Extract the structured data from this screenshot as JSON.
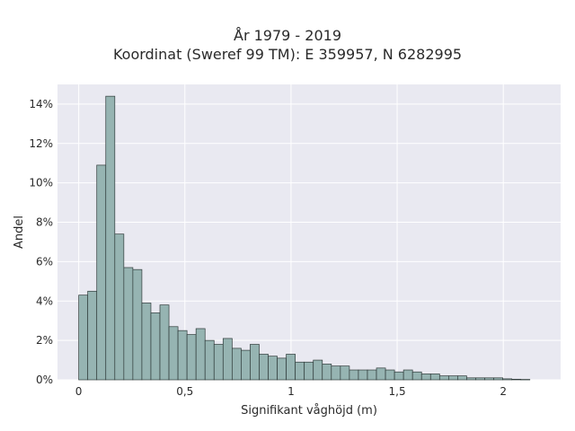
{
  "title_line1": "År 1979 - 2019",
  "title_line2": "Koordinat (Sweref 99 TM): E 359957, N 6282995",
  "chart_data": {
    "type": "bar",
    "xlabel": "Signifikant våghöjd (m)",
    "ylabel": "Andel",
    "xlim": [
      -0.1,
      2.27
    ],
    "ylim": [
      0,
      0.15
    ],
    "bin_width": 0.0425,
    "bin_start": 0.0,
    "x_ticks": [
      {
        "value": 0,
        "label": "0"
      },
      {
        "value": 0.5,
        "label": "0,5"
      },
      {
        "value": 1,
        "label": "1"
      },
      {
        "value": 1.5,
        "label": "1,5"
      },
      {
        "value": 2,
        "label": "2"
      }
    ],
    "y_ticks": [
      {
        "value": 0,
        "label": "0%"
      },
      {
        "value": 0.02,
        "label": "2%"
      },
      {
        "value": 0.04,
        "label": "4%"
      },
      {
        "value": 0.06,
        "label": "6%"
      },
      {
        "value": 0.08,
        "label": "8%"
      },
      {
        "value": 0.1,
        "label": "10%"
      },
      {
        "value": 0.12,
        "label": "12%"
      },
      {
        "value": 0.14,
        "label": "14%"
      }
    ],
    "values": [
      0.043,
      0.045,
      0.109,
      0.144,
      0.074,
      0.057,
      0.056,
      0.039,
      0.034,
      0.038,
      0.027,
      0.025,
      0.023,
      0.026,
      0.02,
      0.018,
      0.021,
      0.016,
      0.015,
      0.018,
      0.013,
      0.012,
      0.011,
      0.013,
      0.009,
      0.009,
      0.01,
      0.008,
      0.007,
      0.007,
      0.005,
      0.005,
      0.005,
      0.006,
      0.005,
      0.004,
      0.005,
      0.004,
      0.003,
      0.003,
      0.002,
      0.002,
      0.002,
      0.001,
      0.001,
      0.001,
      0.001,
      0.0005,
      0.0003,
      0.0002
    ],
    "grid": true,
    "colors": {
      "bar_fill": "#96b4b2",
      "bar_stroke": "#2f3b3a",
      "plot_bg": "#e9e9f1",
      "grid": "#ffffff"
    }
  }
}
